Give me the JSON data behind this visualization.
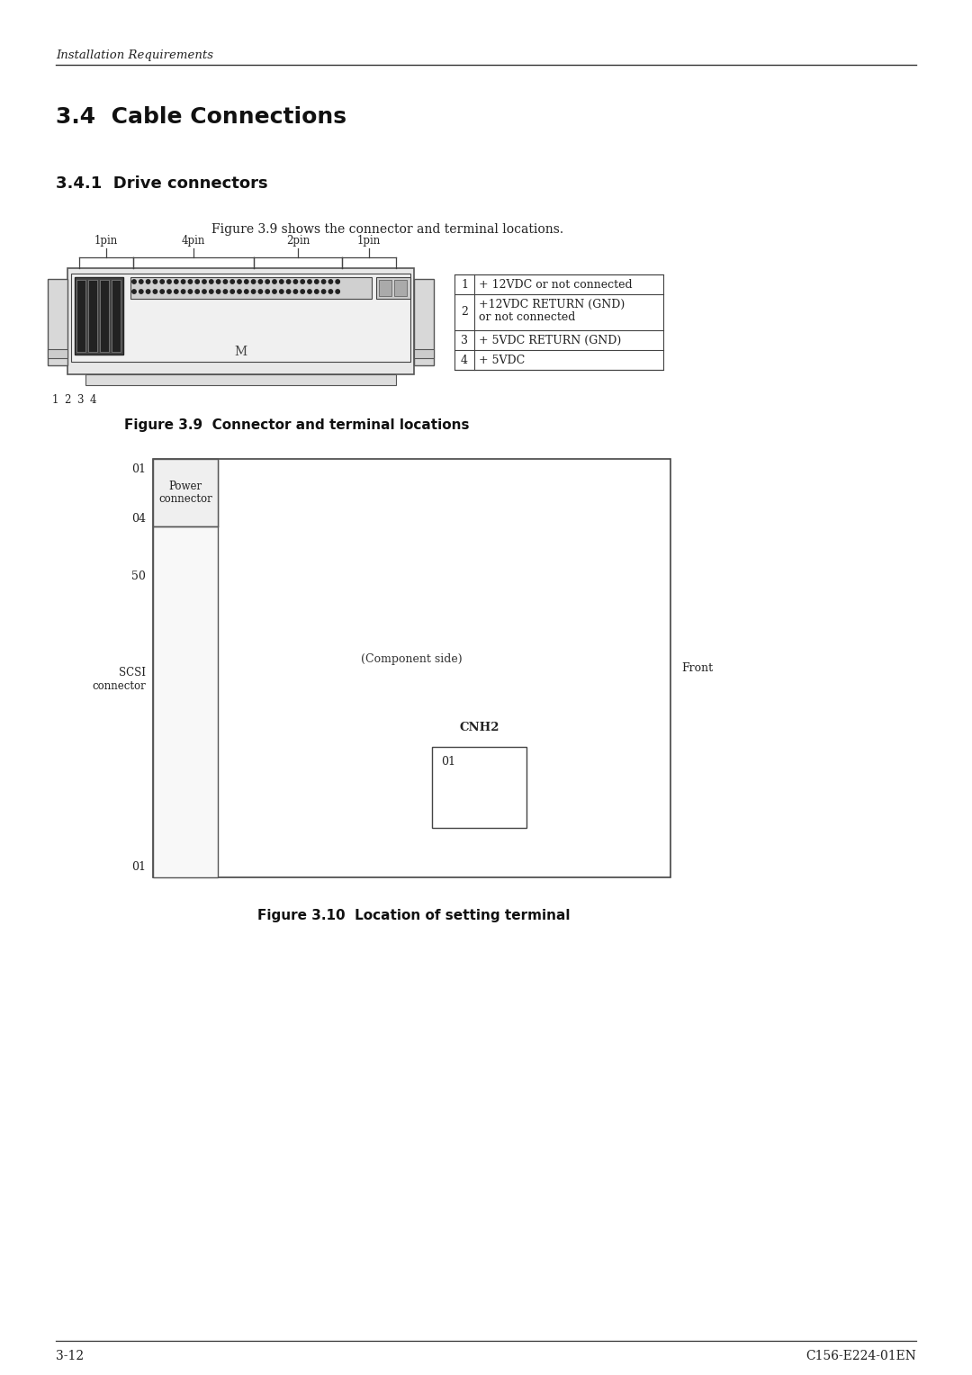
{
  "page_bg": "#ffffff",
  "header_italic": "Installation Requirements",
  "section_title": "3.4  Cable Connections",
  "subsection_title": "3.4.1  Drive connectors",
  "fig39_caption_text": "Figure 3.9 shows the connector and terminal locations.",
  "fig39_label": "Figure 3.9  Connector and terminal locations",
  "fig310_label": "Figure 3.10  Location of setting terminal",
  "table_rows": [
    [
      "1",
      "+ 12VDC or not connected"
    ],
    [
      "2",
      "+12VDC RETURN (GND)\nor not connected"
    ],
    [
      "3",
      "+ 5VDC RETURN (GND)"
    ],
    [
      "4",
      "+ 5VDC"
    ]
  ],
  "pin_labels_top": [
    "1pin",
    "4pin",
    "2pin",
    "1pin"
  ],
  "pin_numbers_bottom": [
    "1",
    "2",
    "3",
    "4"
  ],
  "fig310_labels": {
    "o1_top": "01",
    "o4": "04",
    "o50": "50",
    "o1_bottom": "01",
    "power_connector": "Power\nconnector",
    "scsi_connector": "SCSI\nconnector",
    "component_side": "(Component side)",
    "front": "Front",
    "cnh2": "CNH2",
    "box_label": "01"
  },
  "footer_left": "3-12",
  "footer_right": "C156-E224-01EN"
}
